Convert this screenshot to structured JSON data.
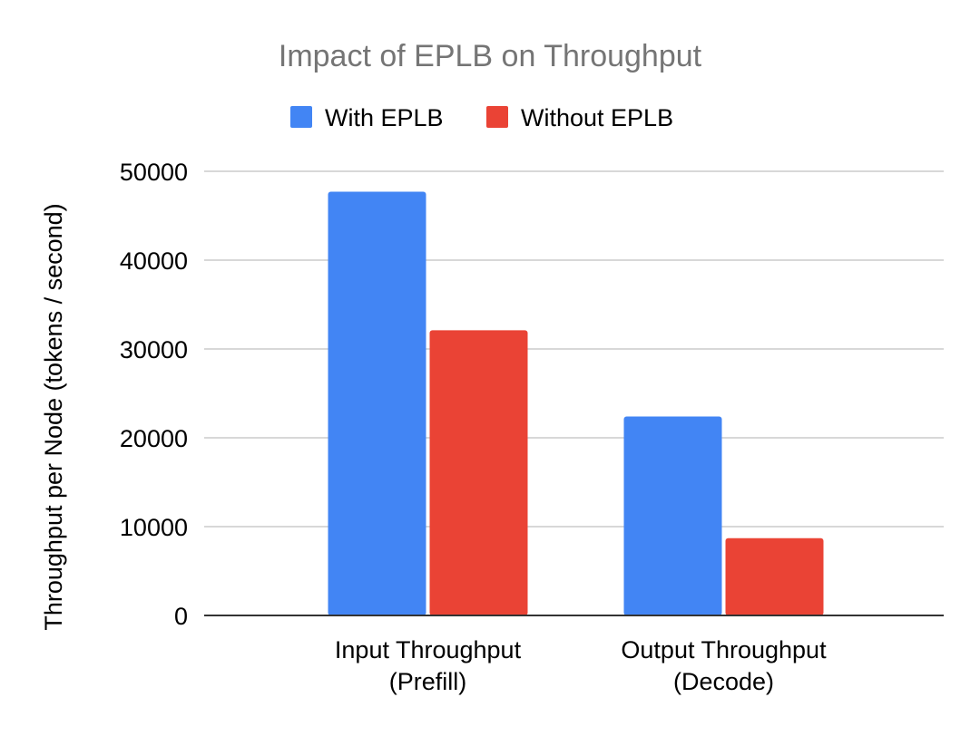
{
  "chart_data": {
    "type": "bar",
    "title": "Impact of EPLB on Throughput",
    "xlabel": "",
    "ylabel": "Throughput per Node (tokens / second)",
    "categories": [
      [
        "Input Throughput",
        "(Prefill)"
      ],
      [
        "Output Throughput",
        "(Decode)"
      ]
    ],
    "series": [
      {
        "name": "With EPLB",
        "color": "#4285f4",
        "values": [
          47700,
          22400
        ]
      },
      {
        "name": "Without EPLB",
        "color": "#ea4335",
        "values": [
          32100,
          8700
        ]
      }
    ],
    "ylim": [
      0,
      50000
    ],
    "yticks": [
      "0",
      "10000",
      "20000",
      "30000",
      "40000",
      "50000"
    ],
    "grid": true,
    "legend_position": "top-center"
  }
}
